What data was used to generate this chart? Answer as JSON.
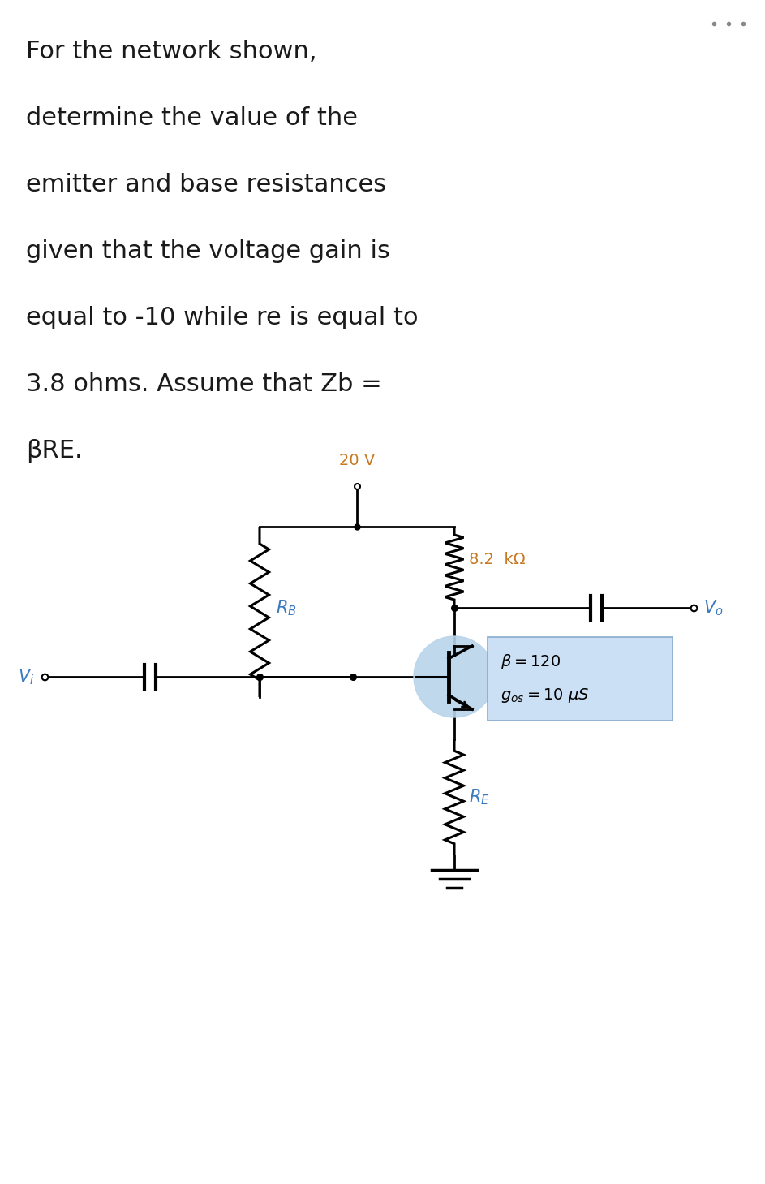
{
  "bg_color": "#ffffff",
  "text_color": "#1a1a1a",
  "blue_label_color": "#3a7abf",
  "orange_label_color": "#c87820",
  "transistor_circle_color": "#b8d4ea",
  "box_bg_color": "#cce0f5",
  "box_edge_color": "#88aacc",
  "title_lines": [
    "For the network shown,",
    "determine the value of the",
    "emitter and base resistances",
    "given that the voltage gain is",
    "equal to -10 while re is equal to",
    "3.8 ohms. Assume that Zb =",
    "βRE."
  ],
  "label_RB": "$R_B$",
  "label_RE": "$R_E$",
  "label_RC": "8.2  kΩ",
  "label_VCC": "20 V",
  "label_Vi": "$V_i$",
  "label_Vo": "$V_o$",
  "label_beta": "$\\beta = 120$",
  "label_gos": "$g_{os} = 10\\ \\mu S$",
  "text_fontsize": 22,
  "label_fontsize": 15,
  "rc_label_fontsize": 14
}
